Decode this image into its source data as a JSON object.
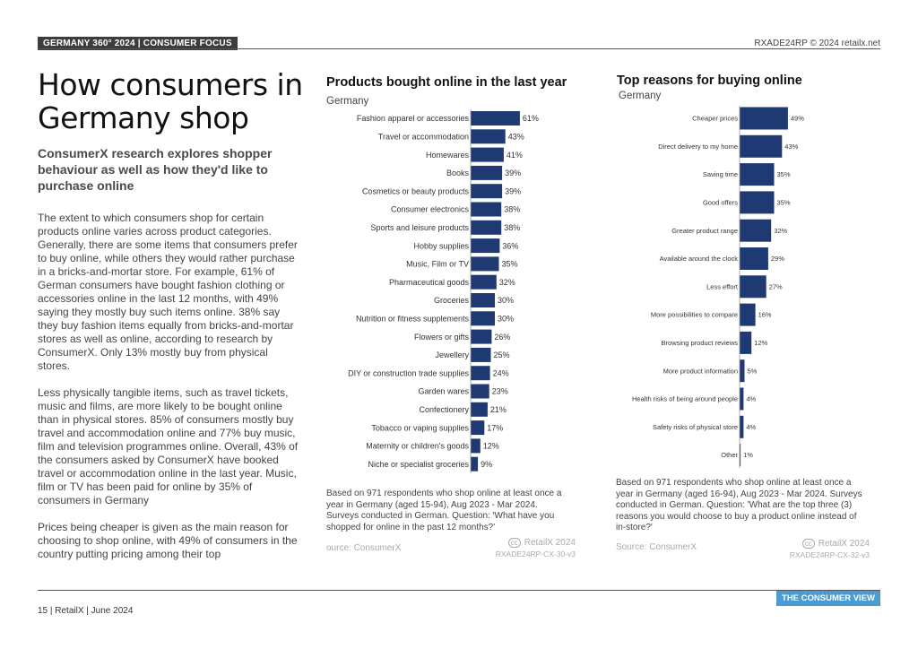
{
  "header": {
    "section_label": "GERMANY 360° 2024 | CONSUMER FOCUS",
    "copyright": "RXADE24RP © 2024 retailx.net"
  },
  "article": {
    "title": "How consumers in Germany shop",
    "subtitle": "ConsumerX research explores shopper behaviour as well as how they'd like to purchase online",
    "paragraphs": [
      "The extent to which consumers shop for certain products online varies across product categories. Generally, there are some items that consumers prefer to buy online, while others they would rather purchase in a bricks-and-mortar store. For example, 61% of German consumers have bought fashion clothing or accessories online in the last 12 months, with 49% saying they mostly buy such items online. 38% say they buy fashion items equally from bricks-and-mortar stores as well as online, according to research by ConsumerX. Only 13% mostly buy from physical stores.",
      "Less physically tangible items, such as travel tickets, music and films, are more likely to be bought online than in physical stores. 85% of consumers mostly buy travel and accommodation online and 77% buy music, film and television programmes online. Overall, 43% of the consumers asked by ConsumerX have booked travel or accommodation online in the last year. Music, film or TV has been paid for online by 35% of consumers in Germany",
      "Prices being cheaper is given as the main reason for choosing to shop online, with 49% of consumers in the country putting pricing among their top"
    ]
  },
  "chart1": {
    "title": "Products bought online in the last year",
    "subtitle": "Germany",
    "note": "Based on 971 respondents who shop online at least once a year in Germany (aged 15-94), Aug 2023 - Mar 2024. Surveys conducted in German. Question: 'What have you shopped for online in the past 12 months?'",
    "source": "ource: ConsumerX",
    "brand": "RetailX 2024",
    "cc": "cc",
    "code": "RXADE24RP-CX-30-v3"
  },
  "chart2": {
    "title": "Top reasons for buying online",
    "subtitle": "Germany",
    "note": "Based on 971 respondents who shop online at least once a year in Germany (aged 16-94), Aug 2023 - Mar 2024. Surveys conducted in German. Question: 'What are the top three (3) reasons you would choose to buy a product online instead of in-store?'",
    "source": "Source: ConsumerX",
    "brand": "RetailX 2024",
    "cc": "cc",
    "code": "RXADE24RP-CX-32-v3"
  },
  "chart_data": [
    {
      "type": "bar",
      "orientation": "horizontal",
      "title": "Products bought online in the last year",
      "subtitle": "Germany",
      "bar_color": "#1f3a73",
      "categories": [
        "Fashion apparel or accessories",
        "Travel or accommodation",
        "Homewares",
        "Books",
        "Cosmetics or beauty products",
        "Consumer electronics",
        "Sports and leisure products",
        "Hobby supplies",
        "Music, Film or TV",
        "Pharmaceutical goods",
        "Groceries",
        "Nutrition or fitness supplements",
        "Flowers or gifts",
        "Jewellery",
        "DIY or construction trade supplies",
        "Garden wares",
        "Confectionery",
        "Tobacco or vaping supplies",
        "Maternity or children's goods",
        "Niche or specialist groceries"
      ],
      "values": [
        61,
        43,
        41,
        39,
        39,
        38,
        38,
        36,
        35,
        32,
        30,
        30,
        26,
        25,
        24,
        23,
        21,
        17,
        12,
        9
      ],
      "value_labels": [
        "61%",
        "43%",
        "41%",
        "39%",
        "39%",
        "38%",
        "38%",
        "36%",
        "35%",
        "32%",
        "30%",
        "30%",
        "26%",
        "25%",
        "24%",
        "23%",
        "21%",
        "17%",
        "12%",
        "9%"
      ]
    },
    {
      "type": "bar",
      "orientation": "horizontal",
      "title": "Top reasons for buying online",
      "subtitle": "Germany",
      "bar_color": "#1f3a73",
      "categories": [
        "Cheaper prices",
        "Direct delivery to my home",
        "Saving time",
        "Good offers",
        "Greater product range",
        "Available around the clock",
        "Less effort",
        "More possibilities to compare",
        "Browsing product reviews",
        "More product information",
        "Health risks of being around people",
        "Safety risks of physical store",
        "Other"
      ],
      "values": [
        49,
        43,
        35,
        35,
        32,
        29,
        27,
        16,
        12,
        5,
        4,
        4,
        1
      ],
      "value_labels": [
        "49%",
        "43%",
        "35%",
        "35%",
        "32%",
        "29%",
        "27%",
        "16%",
        "12%",
        "5%",
        "4%",
        "4%",
        "1%"
      ]
    }
  ],
  "footer": {
    "page_info": "15 | RetailX | June 2024",
    "tag": "THE CONSUMER VIEW"
  }
}
